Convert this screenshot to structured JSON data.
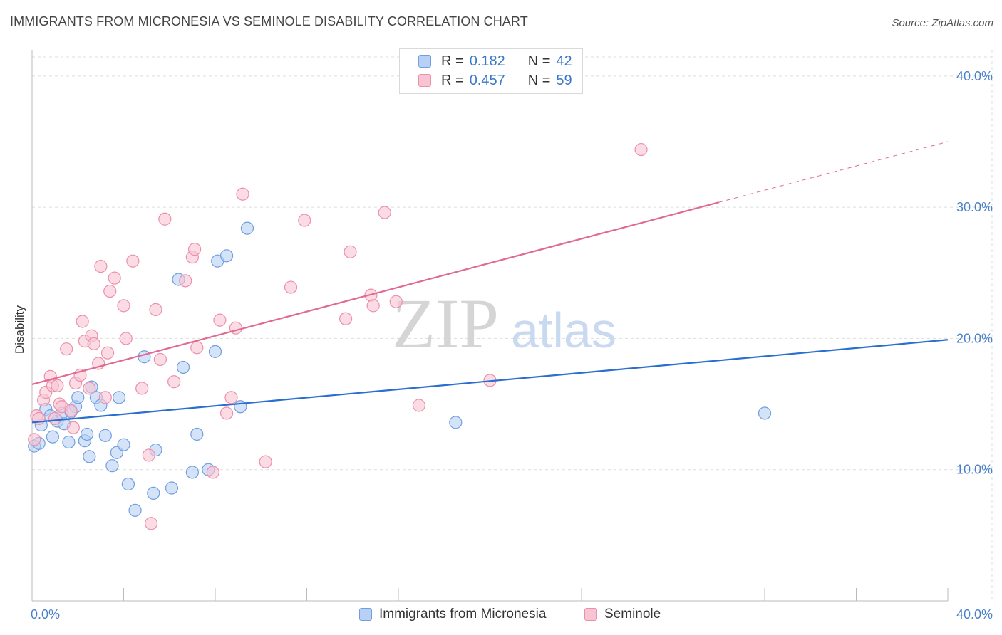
{
  "header": {
    "title": "IMMIGRANTS FROM MICRONESIA VS SEMINOLE DISABILITY CORRELATION CHART",
    "source": "Source: ZipAtlas.com"
  },
  "legend": {
    "r_label": "R =",
    "n_label": "N =",
    "series": [
      {
        "r": "0.182",
        "n": "42"
      },
      {
        "r": "0.457",
        "n": "59"
      }
    ]
  },
  "watermark": {
    "part1": "ZIP",
    "part2": "atlas"
  },
  "colors": {
    "micronesia_fill": "#b8d0f3",
    "micronesia_stroke": "#6f9fe0",
    "micronesia_line": "#2a6fcf",
    "seminole_fill": "#f8c4d4",
    "seminole_stroke": "#ec8fab",
    "seminole_line": "#e06a93",
    "grid": "#dddddd",
    "axis_label": "#4a80c8"
  },
  "chart_data": {
    "type": "scatter",
    "title": "IMMIGRANTS FROM MICRONESIA VS SEMINOLE DISABILITY CORRELATION CHART",
    "xlabel": "",
    "ylabel": "Disability",
    "xlim": [
      0,
      40
    ],
    "ylim": [
      0,
      42
    ],
    "x_tick_labels": [
      "0.0%",
      "40.0%"
    ],
    "y_ticks": [
      10,
      20,
      30,
      40
    ],
    "y_tick_labels": [
      "10.0%",
      "20.0%",
      "30.0%",
      "40.0%"
    ],
    "grid": true,
    "legend_position": "top-center",
    "series": [
      {
        "name": "Immigrants from Micronesia",
        "r": 0.182,
        "n": 42,
        "trend": {
          "x": [
            0,
            40
          ],
          "y": [
            13.6,
            19.9
          ],
          "dashed_from": null
        },
        "points": [
          [
            0.1,
            11.8
          ],
          [
            0.4,
            13.4
          ],
          [
            0.6,
            14.6
          ],
          [
            0.9,
            12.5
          ],
          [
            1.1,
            13.7
          ],
          [
            1.3,
            14.3
          ],
          [
            1.4,
            13.5
          ],
          [
            1.6,
            12.1
          ],
          [
            1.9,
            14.8
          ],
          [
            2.0,
            15.5
          ],
          [
            2.3,
            12.2
          ],
          [
            2.4,
            12.7
          ],
          [
            2.5,
            11.0
          ],
          [
            2.6,
            16.3
          ],
          [
            2.8,
            15.5
          ],
          [
            3.0,
            14.9
          ],
          [
            3.2,
            12.6
          ],
          [
            3.5,
            10.3
          ],
          [
            3.7,
            11.3
          ],
          [
            3.8,
            15.5
          ],
          [
            4.0,
            11.9
          ],
          [
            4.2,
            8.9
          ],
          [
            4.5,
            6.9
          ],
          [
            4.9,
            18.6
          ],
          [
            5.3,
            8.2
          ],
          [
            5.4,
            11.5
          ],
          [
            6.1,
            8.6
          ],
          [
            6.4,
            24.5
          ],
          [
            6.6,
            17.8
          ],
          [
            7.0,
            9.8
          ],
          [
            7.2,
            12.7
          ],
          [
            7.7,
            10.0
          ],
          [
            8.0,
            19.0
          ],
          [
            8.1,
            25.9
          ],
          [
            8.5,
            26.3
          ],
          [
            9.1,
            14.8
          ],
          [
            9.4,
            28.4
          ],
          [
            18.5,
            13.6
          ],
          [
            32.0,
            14.3
          ],
          [
            0.3,
            12.0
          ],
          [
            1.7,
            14.4
          ],
          [
            0.8,
            14.1
          ]
        ]
      },
      {
        "name": "Seminole",
        "r": 0.457,
        "n": 59,
        "trend": {
          "x": [
            0,
            40
          ],
          "y": [
            16.5,
            35.0
          ],
          "dashed_from": 30
        },
        "points": [
          [
            0.1,
            12.3
          ],
          [
            0.2,
            14.1
          ],
          [
            0.5,
            15.3
          ],
          [
            0.6,
            15.9
          ],
          [
            0.8,
            17.1
          ],
          [
            0.9,
            16.4
          ],
          [
            1.0,
            13.9
          ],
          [
            1.1,
            16.4
          ],
          [
            1.2,
            15.0
          ],
          [
            1.3,
            14.8
          ],
          [
            1.5,
            19.2
          ],
          [
            1.7,
            14.5
          ],
          [
            1.8,
            13.2
          ],
          [
            1.9,
            16.6
          ],
          [
            2.1,
            17.2
          ],
          [
            2.2,
            21.3
          ],
          [
            2.3,
            19.8
          ],
          [
            2.5,
            16.2
          ],
          [
            2.6,
            20.2
          ],
          [
            2.7,
            19.6
          ],
          [
            2.9,
            18.1
          ],
          [
            3.0,
            25.5
          ],
          [
            3.2,
            15.5
          ],
          [
            3.3,
            18.9
          ],
          [
            3.4,
            23.6
          ],
          [
            3.6,
            24.6
          ],
          [
            4.0,
            22.5
          ],
          [
            4.1,
            20.0
          ],
          [
            4.4,
            25.9
          ],
          [
            4.8,
            16.2
          ],
          [
            5.1,
            11.1
          ],
          [
            5.2,
            5.9
          ],
          [
            5.4,
            22.2
          ],
          [
            5.6,
            18.4
          ],
          [
            5.8,
            29.1
          ],
          [
            6.2,
            16.7
          ],
          [
            6.7,
            24.4
          ],
          [
            7.0,
            26.2
          ],
          [
            7.1,
            26.8
          ],
          [
            7.2,
            19.3
          ],
          [
            7.9,
            9.8
          ],
          [
            8.2,
            21.4
          ],
          [
            8.5,
            14.3
          ],
          [
            8.7,
            15.5
          ],
          [
            8.9,
            20.8
          ],
          [
            9.2,
            31.0
          ],
          [
            10.2,
            10.6
          ],
          [
            11.3,
            23.9
          ],
          [
            11.9,
            29.0
          ],
          [
            13.7,
            21.5
          ],
          [
            13.9,
            26.6
          ],
          [
            14.8,
            23.3
          ],
          [
            14.9,
            22.5
          ],
          [
            15.4,
            29.6
          ],
          [
            15.9,
            22.8
          ],
          [
            16.9,
            14.9
          ],
          [
            20.0,
            16.8
          ],
          [
            26.6,
            34.4
          ],
          [
            0.3,
            13.9
          ]
        ]
      }
    ]
  },
  "bottom_legend": {
    "items": [
      "Immigrants from Micronesia",
      "Seminole"
    ]
  }
}
